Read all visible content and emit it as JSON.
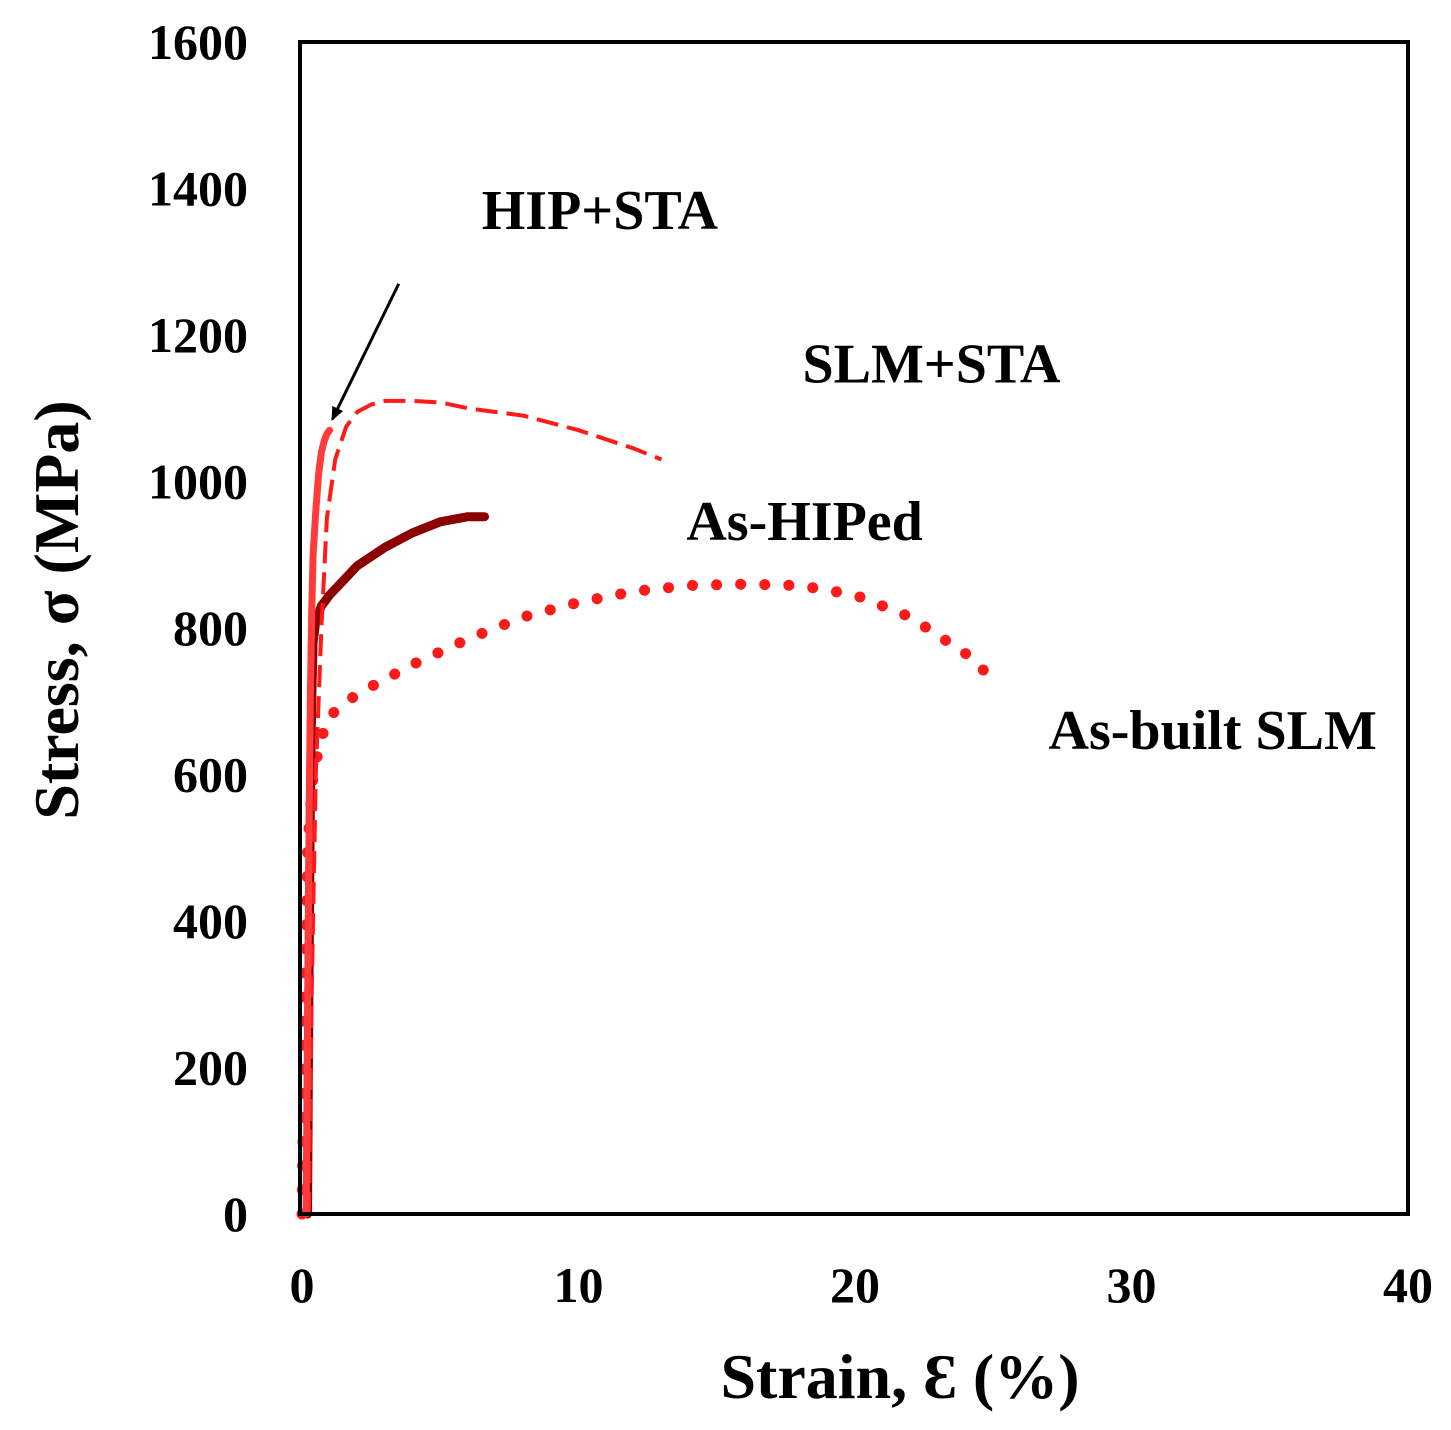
{
  "chart_data": {
    "type": "line",
    "title": "",
    "xlabel": "Strain, Ɛ (%)",
    "ylabel": "Stress, σ (MPa)",
    "xlim": [
      0,
      40
    ],
    "ylim": [
      0,
      1600
    ],
    "xticks": [
      0,
      10,
      20,
      30,
      40
    ],
    "yticks": [
      0,
      200,
      400,
      600,
      800,
      1000,
      1200,
      1400,
      1600
    ],
    "grid": false,
    "colors": {
      "hip_sta": "#ff3b3b",
      "slm_sta": "#ff1a1a",
      "as_hiped": "#8b0000",
      "as_built": "#ff1a1a",
      "axis": "#000000"
    },
    "series": [
      {
        "name": "HIP+STA",
        "style": "solid",
        "x": [
          0.15,
          0.2,
          0.25,
          0.3,
          0.35,
          0.4,
          0.5,
          0.6,
          0.7,
          0.8,
          0.9,
          1.0
        ],
        "y": [
          0,
          250,
          500,
          700,
          820,
          900,
          960,
          1010,
          1040,
          1055,
          1065,
          1070
        ]
      },
      {
        "name": "SLM+STA",
        "style": "dashed",
        "x": [
          0.25,
          0.35,
          0.5,
          0.7,
          0.9,
          1.2,
          1.6,
          2.0,
          2.5,
          3.0,
          4.0,
          5.0,
          6.0,
          8.0,
          10.0,
          12.0,
          13.0
        ],
        "y": [
          0,
          300,
          600,
          800,
          950,
          1030,
          1075,
          1095,
          1105,
          1110,
          1110,
          1108,
          1100,
          1090,
          1070,
          1045,
          1030
        ]
      },
      {
        "name": "As-HIPed",
        "style": "solid-thick",
        "x": [
          0.2,
          0.25,
          0.3,
          0.35,
          0.4,
          0.5,
          0.7,
          1.0,
          1.5,
          2.0,
          3.0,
          4.0,
          5.0,
          6.0,
          6.6
        ],
        "y": [
          0,
          300,
          550,
          700,
          780,
          810,
          830,
          845,
          865,
          885,
          910,
          930,
          945,
          952,
          952
        ]
      },
      {
        "name": "As-built SLM",
        "style": "dotted",
        "x": [
          0,
          0.05,
          0.1,
          0.2,
          0.4,
          0.7,
          1.0,
          2.0,
          4.0,
          6.0,
          8.0,
          10.0,
          12.0,
          14.0,
          16.0,
          18.0,
          20.0,
          22.0,
          24.0,
          25.0
        ],
        "y": [
          0,
          150,
          300,
          500,
          600,
          650,
          680,
          710,
          750,
          785,
          815,
          835,
          850,
          858,
          860,
          858,
          845,
          815,
          765,
          730
        ]
      }
    ],
    "annotations": [
      {
        "text": "HIP+STA",
        "x": 6.5,
        "y": 1345,
        "arrow_from": [
          3.5,
          1270
        ],
        "arrow_to": [
          1.1,
          1085
        ]
      },
      {
        "text": "SLM+STA",
        "x": 18.1,
        "y": 1135
      },
      {
        "text": "As-HIPed",
        "x": 13.9,
        "y": 920
      },
      {
        "text": "As-built SLM",
        "x": 27.0,
        "y": 635
      }
    ]
  }
}
